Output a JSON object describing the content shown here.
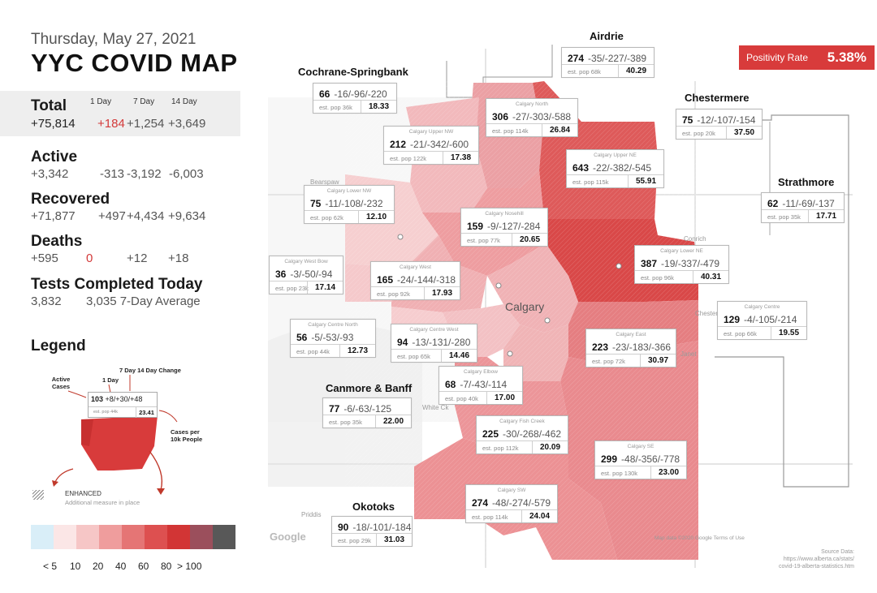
{
  "header": {
    "date": "Thursday, May 27, 2021",
    "title": "YYC COVID MAP"
  },
  "positivity": {
    "label": "Positivity Rate",
    "value": "5.38%"
  },
  "stats": {
    "columns": [
      "1 Day",
      "7 Day",
      "14 Day"
    ],
    "total": {
      "label": "Total",
      "value": "+75,814",
      "d1": "+184",
      "d7": "+1,254",
      "d14": "+3,649"
    },
    "active": {
      "label": "Active",
      "value": "+3,342",
      "d1": "-313",
      "d7": "-3,192",
      "d14": "-6,003"
    },
    "recovered": {
      "label": "Recovered",
      "value": "+71,877",
      "d1": "+497",
      "d7": "+4,434",
      "d14": "+9,634"
    },
    "deaths": {
      "label": "Deaths",
      "value": "+595",
      "d1": "0",
      "d7": "+12",
      "d14": "+18"
    },
    "tests": {
      "label": "Tests Completed Today",
      "value": "3,832",
      "avg": "3,035 7-Day Average"
    }
  },
  "legend": {
    "title": "Legend",
    "active_label": "Active Cases",
    "day1_label": "1 Day",
    "change_label": "7 Day  14 Day Change",
    "per10k_label": "Cases per 10k People",
    "example": {
      "active": "103",
      "changes": "+8/+30/+48",
      "pop": "est. pop 44k",
      "rate": "23.41"
    },
    "enhanced_title": "ENHANCED",
    "enhanced_sub": "Additional measure in place",
    "scale_colors": [
      "#d9eef8",
      "#fbe6e6",
      "#f6c6c6",
      "#ef9d9d",
      "#e57575",
      "#dd5050",
      "#d23535",
      "#9b4f5c",
      "#585858"
    ],
    "scale_labels": [
      "< 5",
      "10",
      "20",
      "40",
      "60",
      "80",
      "> 100"
    ]
  },
  "regions": [
    {
      "id": "airdrie",
      "title": "Airdrie",
      "cap": "",
      "active": "274",
      "changes": "-35/-227/-389",
      "pop": "est. pop 68k",
      "rate": "40.29"
    },
    {
      "id": "cochrane",
      "title": "Cochrane-Springbank",
      "cap": "",
      "active": "66",
      "changes": "-16/-96/-220",
      "pop": "est. pop 36k",
      "rate": "18.33"
    },
    {
      "id": "chestermere",
      "title": "Chestermere",
      "cap": "",
      "active": "75",
      "changes": "-12/-107/-154",
      "pop": "est. pop 20k",
      "rate": "37.50"
    },
    {
      "id": "strathmore",
      "title": "Strathmore",
      "cap": "",
      "active": "62",
      "changes": "-11/-69/-137",
      "pop": "est. pop 35k",
      "rate": "17.71"
    },
    {
      "id": "canmore",
      "title": "Canmore & Banff",
      "cap": "",
      "active": "77",
      "changes": "-6/-63/-125",
      "pop": "est. pop 35k",
      "rate": "22.00"
    },
    {
      "id": "okotoks",
      "title": "Okotoks",
      "cap": "",
      "active": "90",
      "changes": "-18/-101/-184",
      "pop": "est. pop 29k",
      "rate": "31.03"
    },
    {
      "id": "north",
      "title": "",
      "cap": "Calgary North",
      "active": "306",
      "changes": "-27/-303/-588",
      "pop": "est. pop 114k",
      "rate": "26.84"
    },
    {
      "id": "uppernw",
      "title": "",
      "cap": "Calgary Upper NW",
      "active": "212",
      "changes": "-21/-342/-600",
      "pop": "est. pop 122k",
      "rate": "17.38"
    },
    {
      "id": "upperne",
      "title": "",
      "cap": "Calgary Upper NE",
      "active": "643",
      "changes": "-22/-382/-545",
      "pop": "est. pop 115k",
      "rate": "55.91"
    },
    {
      "id": "lowernw",
      "title": "",
      "cap": "Calgary Lower NW",
      "active": "75",
      "changes": "-11/-108/-232",
      "pop": "est. pop 62k",
      "rate": "12.10"
    },
    {
      "id": "nosehill",
      "title": "",
      "cap": "Calgary Nosehill",
      "active": "159",
      "changes": "-9/-127/-284",
      "pop": "est. pop 77k",
      "rate": "20.65"
    },
    {
      "id": "lowerne",
      "title": "",
      "cap": "Calgary Lower NE",
      "active": "387",
      "changes": "-19/-337/-479",
      "pop": "est. pop 96k",
      "rate": "40.31"
    },
    {
      "id": "westbow",
      "title": "",
      "cap": "Calgary West Bow",
      "active": "36",
      "changes": "-3/-50/-94",
      "pop": "est. pop 23k",
      "rate": "17.14"
    },
    {
      "id": "west",
      "title": "",
      "cap": "Calgary West",
      "active": "165",
      "changes": "-24/-144/-318",
      "pop": "est. pop 92k",
      "rate": "17.93"
    },
    {
      "id": "centre",
      "title": "",
      "cap": "Calgary Centre",
      "active": "129",
      "changes": "-4/-105/-214",
      "pop": "est. pop 66k",
      "rate": "19.55"
    },
    {
      "id": "centrenorth",
      "title": "",
      "cap": "Calgary Centre North",
      "active": "56",
      "changes": "-5/-53/-93",
      "pop": "est. pop 44k",
      "rate": "12.73"
    },
    {
      "id": "centrewest",
      "title": "",
      "cap": "Calgary Centre West",
      "active": "94",
      "changes": "-13/-131/-280",
      "pop": "est. pop 65k",
      "rate": "14.46"
    },
    {
      "id": "east",
      "title": "",
      "cap": "Calgary East",
      "active": "223",
      "changes": "-23/-183/-366",
      "pop": "est. pop 72k",
      "rate": "30.97"
    },
    {
      "id": "elbow",
      "title": "",
      "cap": "Calgary Elbow",
      "active": "68",
      "changes": "-7/-43/-114",
      "pop": "est. pop 40k",
      "rate": "17.00"
    },
    {
      "id": "fishcreek",
      "title": "",
      "cap": "Calgary Fish Creek",
      "active": "225",
      "changes": "-30/-268/-462",
      "pop": "est. pop 112k",
      "rate": "20.09"
    },
    {
      "id": "se",
      "title": "",
      "cap": "Calgary SE",
      "active": "299",
      "changes": "-48/-356/-778",
      "pop": "est. pop 130k",
      "rate": "23.00"
    },
    {
      "id": "sw",
      "title": "",
      "cap": "Calgary SW",
      "active": "274",
      "changes": "-48/-274/-579",
      "pop": "est. pop 114k",
      "rate": "24.04"
    }
  ],
  "map_labels": {
    "calgary": "Calgary",
    "bearspaw": "Bearspaw",
    "conrich": "Conrich",
    "chestermere_town": "Chestermere",
    "janet": "Janet",
    "priddis": "Priddis",
    "white_ck": "White Ck",
    "google": "Google",
    "attribution": "Map data ©2020 Google   Terms of Use"
  },
  "source": {
    "label": "Source Data:",
    "url1": "https://www.alberta.ca/stats/",
    "url2": "covid-19-alberta-statistics.htm"
  }
}
